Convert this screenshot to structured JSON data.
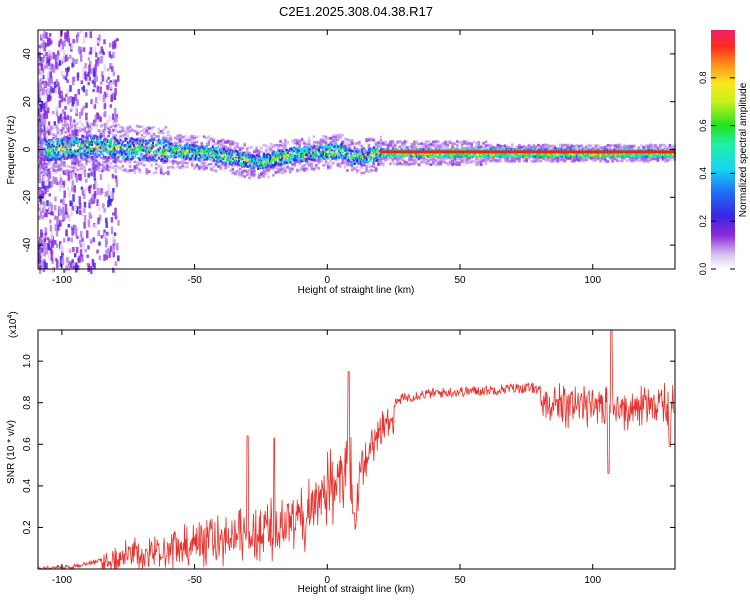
{
  "title": "C2E1.2025.308.04.38.R17",
  "chart_data": [
    {
      "type": "heatmap",
      "name": "spectrogram",
      "xlabel": "Height of straight line (km)",
      "ylabel": "Frequency (Hz)",
      "xlim": [
        -109,
        131
      ],
      "ylim": [
        -50,
        50
      ],
      "xticks": [
        -100,
        -50,
        0,
        50,
        100
      ],
      "yticks": [
        -40,
        -20,
        0,
        20,
        40
      ],
      "grid": false,
      "description_of_data": "Energy concentrated near 0 Hz across all heights; broad scatter at heights below -85 km; narrow persistent line from about 20 km to 131 km; line dips to about -5 Hz near -30 km.",
      "ridge": {
        "x": [
          -109,
          -90,
          -80,
          -60,
          -45,
          -35,
          -28,
          -22,
          -15,
          -5,
          5,
          10,
          20,
          40,
          60,
          131
        ],
        "y": [
          0,
          2,
          1,
          0,
          -1,
          -3,
          -5,
          -4,
          -2,
          -1,
          0,
          -3,
          -1,
          -1,
          -1,
          -1
        ]
      }
    },
    {
      "type": "colorbar",
      "label": "Normalized spectral amplitude",
      "range": [
        0,
        1
      ],
      "ticks": [
        "0.0",
        "0.2",
        "0.4",
        "0.6",
        "0.8"
      ],
      "tick_values": [
        0,
        0.2,
        0.4,
        0.6,
        0.8
      ]
    },
    {
      "type": "line",
      "name": "snr",
      "xlabel": "Height of straight line (km)",
      "ylabel": "SNR (10 * v/v)",
      "y_multiplier": "(x10^4)",
      "y_multiplier_base": "(x10",
      "y_multiplier_exp": "4",
      "y_multiplier_close": ")",
      "xlim": [
        -109,
        131
      ],
      "ylim": [
        0,
        1.15
      ],
      "xticks": [
        -100,
        -50,
        0,
        50,
        100
      ],
      "yticks": [
        "0.2",
        "0.4",
        "0.6",
        "0.8",
        "1.0"
      ],
      "ytick_values": [
        0.2,
        0.4,
        0.6,
        0.8,
        1.0
      ],
      "color": "#e8312c",
      "envelope": {
        "x": [
          -109,
          -95,
          -85,
          -75,
          -65,
          -55,
          -45,
          -35,
          -25,
          -18,
          -10,
          -5,
          0,
          3,
          6,
          8,
          9,
          10,
          12,
          15,
          18,
          22,
          28,
          35,
          45,
          60,
          70,
          80,
          90,
          100,
          110,
          120,
          131
        ],
        "y": [
          0.01,
          0.02,
          0.05,
          0.12,
          0.15,
          0.18,
          0.22,
          0.27,
          0.3,
          0.33,
          0.38,
          0.45,
          0.52,
          0.56,
          0.6,
          0.64,
          0.58,
          0.32,
          0.55,
          0.62,
          0.69,
          0.76,
          0.82,
          0.84,
          0.85,
          0.86,
          0.87,
          0.87,
          0.86,
          0.86,
          0.85,
          0.86,
          0.86
        ]
      },
      "peaks": [
        {
          "x": 8,
          "y": 0.95
        },
        {
          "x": 10,
          "y": 0.27
        },
        {
          "x": 107,
          "y": 1.15
        },
        {
          "x": 106,
          "y": 0.46
        },
        {
          "x": 129,
          "y": 0.59
        },
        {
          "x": -30,
          "y": 0.64
        },
        {
          "x": -20,
          "y": 0.63
        }
      ]
    }
  ]
}
